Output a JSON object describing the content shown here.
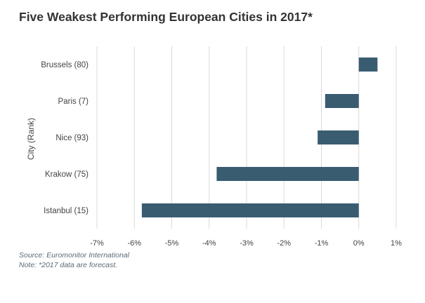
{
  "chart_data": {
    "type": "bar",
    "orientation": "horizontal",
    "title": "Five Weakest Performing European Cities in 2017*",
    "ylabel": "City (Rank)",
    "xlabel": "",
    "categories": [
      "Brussels (80)",
      "Paris (7)",
      "Nice (93)",
      "Krakow (75)",
      "Istanbul (15)"
    ],
    "values": [
      0.5,
      -0.9,
      -1.1,
      -3.8,
      -5.8
    ],
    "unit": "%",
    "xlim": [
      -7,
      1
    ],
    "xticks": [
      -7,
      -6,
      -5,
      -4,
      -3,
      -2,
      -1,
      0,
      1
    ],
    "xtick_labels": [
      "-7%",
      "-6%",
      "-5%",
      "-4%",
      "-3%",
      "-2%",
      "-1%",
      "0%",
      "1%"
    ],
    "bar_color": "#3a5c71",
    "grid": true
  },
  "footer": {
    "source": "Source: Euromonitor International",
    "note": "Note: *2017 data are forecast."
  }
}
